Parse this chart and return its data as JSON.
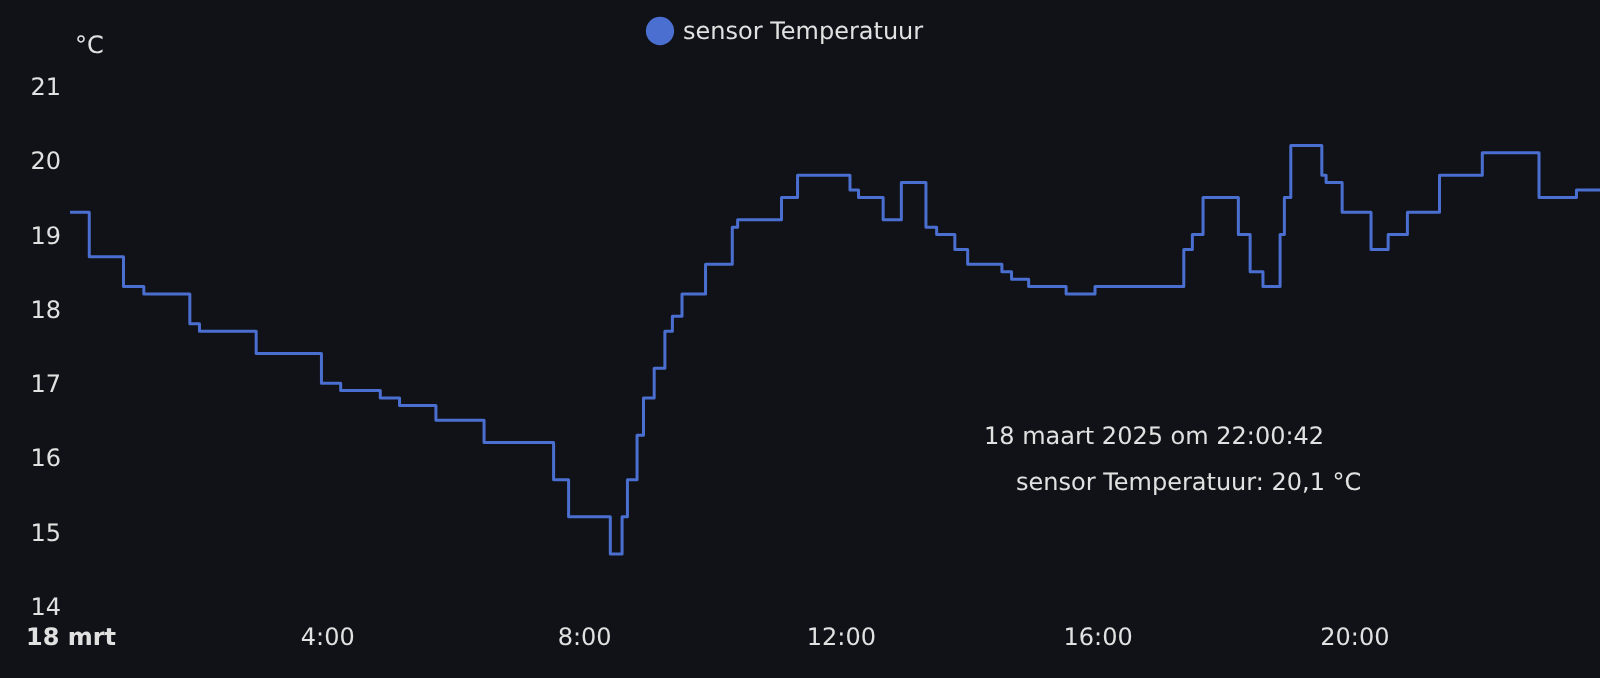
{
  "chart_data": {
    "type": "step",
    "x": [
      "2025-03-18T00:00",
      "2025-03-18T00:18",
      "2025-03-18T00:50",
      "2025-03-18T01:09",
      "2025-03-18T01:52",
      "2025-03-18T02:01",
      "2025-03-18T02:54",
      "2025-03-18T03:55",
      "2025-03-18T04:13",
      "2025-03-18T04:50",
      "2025-03-18T05:08",
      "2025-03-18T05:42",
      "2025-03-18T06:27",
      "2025-03-18T07:32",
      "2025-03-18T07:46",
      "2025-03-18T08:25",
      "2025-03-18T08:36",
      "2025-03-18T08:41",
      "2025-03-18T08:50",
      "2025-03-18T08:56",
      "2025-03-18T09:06",
      "2025-03-18T09:16",
      "2025-03-18T09:23",
      "2025-03-18T09:32",
      "2025-03-18T09:54",
      "2025-03-18T10:19",
      "2025-03-18T10:24",
      "2025-03-18T11:05",
      "2025-03-18T11:20",
      "2025-03-18T12:09",
      "2025-03-18T12:17",
      "2025-03-18T12:40",
      "2025-03-18T12:57",
      "2025-03-18T13:20",
      "2025-03-18T13:30",
      "2025-03-18T13:47",
      "2025-03-18T13:59",
      "2025-03-18T14:31",
      "2025-03-18T14:40",
      "2025-03-18T14:56",
      "2025-03-18T15:31",
      "2025-03-18T15:58",
      "2025-03-18T17:21",
      "2025-03-18T17:29",
      "2025-03-18T17:39",
      "2025-03-18T18:12",
      "2025-03-18T18:23",
      "2025-03-18T18:35",
      "2025-03-18T18:51",
      "2025-03-18T18:55",
      "2025-03-18T19:01",
      "2025-03-18T19:30",
      "2025-03-18T19:34",
      "2025-03-18T19:49",
      "2025-03-18T20:16",
      "2025-03-18T20:32",
      "2025-03-18T20:50",
      "2025-03-18T21:20",
      "2025-03-18T22:00",
      "2025-03-18T22:53",
      "2025-03-18T23:28",
      "2025-03-18T23:50"
    ],
    "series": [
      {
        "name": "sensor Temperatuur",
        "color": "#4a6fd0",
        "values": [
          19.3,
          18.7,
          18.3,
          18.2,
          17.8,
          17.7,
          17.4,
          17.0,
          16.9,
          16.8,
          16.7,
          16.5,
          16.2,
          15.7,
          15.2,
          14.7,
          15.2,
          15.7,
          16.3,
          16.8,
          17.2,
          17.7,
          17.9,
          18.2,
          18.6,
          19.1,
          19.2,
          19.5,
          19.8,
          19.6,
          19.5,
          19.2,
          19.7,
          19.1,
          19.0,
          18.8,
          18.6,
          18.5,
          18.4,
          18.3,
          18.2,
          18.3,
          18.8,
          19.0,
          19.5,
          19.0,
          18.5,
          18.3,
          19.0,
          19.5,
          20.2,
          19.8,
          19.7,
          19.3,
          18.8,
          19.0,
          19.3,
          19.8,
          20.1,
          19.5,
          19.6,
          19.6
        ]
      }
    ],
    "ylabel": "°C",
    "xlim": [
      "2025-03-18T00:00",
      "2025-03-18T23:50"
    ],
    "xticks": [
      {
        "value": "2025-03-18T00:00",
        "label": "18 mrt"
      },
      {
        "value": "2025-03-18T04:00",
        "label": "4:00"
      },
      {
        "value": "2025-03-18T08:00",
        "label": "8:00"
      },
      {
        "value": "2025-03-18T12:00",
        "label": "12:00"
      },
      {
        "value": "2025-03-18T16:00",
        "label": "16:00"
      },
      {
        "value": "2025-03-18T20:00",
        "label": "20:00"
      }
    ],
    "ylim": [
      14,
      21
    ],
    "yticks": [
      14,
      15,
      16,
      17,
      18,
      19,
      20,
      21
    ],
    "grid": false,
    "legend": "top",
    "annotations": [
      "18 maart 2025 om 22:00:42",
      "sensor Temperatuur: 20,1 °C"
    ]
  }
}
